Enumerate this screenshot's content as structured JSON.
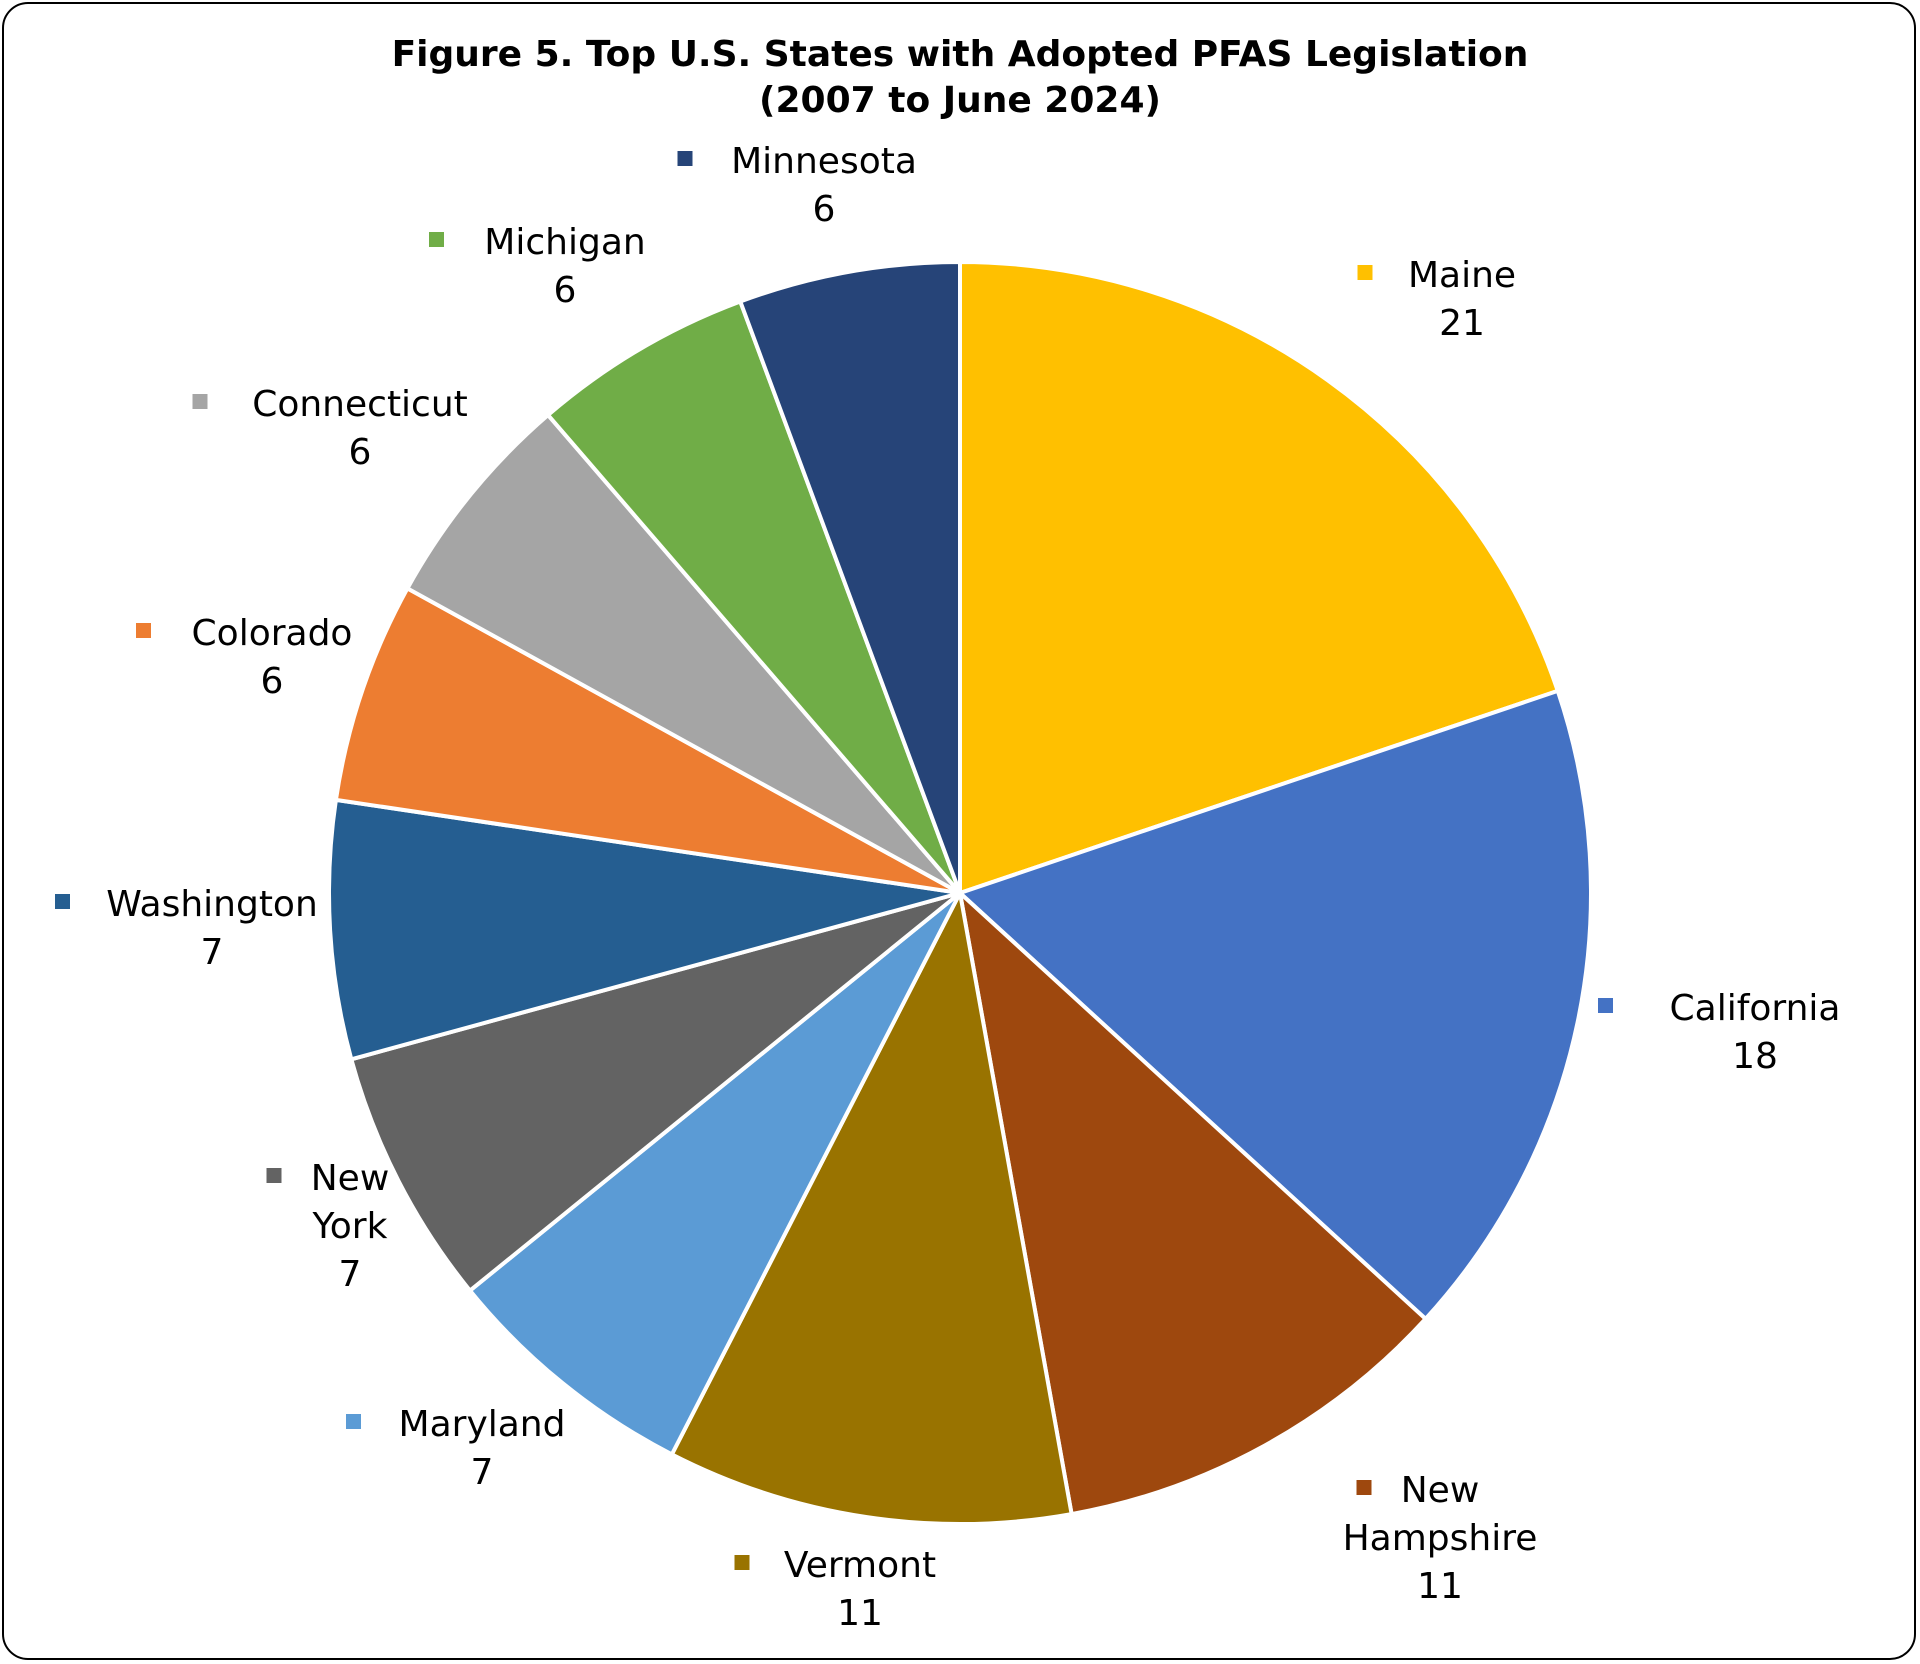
{
  "chart_data": {
    "type": "pie",
    "title_line1": "Figure 5. Top U.S. States with Adopted PFAS Legislation",
    "title_line2": "(2007 to June 2024)",
    "slices": [
      {
        "name": "Maine",
        "value": 21,
        "color": "#FFC000"
      },
      {
        "name": "California",
        "value": 18,
        "color": "#4472C4"
      },
      {
        "name": "New Hampshire",
        "value": 11,
        "color": "#9E480E"
      },
      {
        "name": "Vermont",
        "value": 11,
        "color": "#997300"
      },
      {
        "name": "Maryland",
        "value": 7,
        "color": "#5B9BD5"
      },
      {
        "name": "New York",
        "value": 7,
        "color": "#636363"
      },
      {
        "name": "Washington",
        "value": 7,
        "color": "#255E91"
      },
      {
        "name": "Colorado",
        "value": 6,
        "color": "#ED7D31"
      },
      {
        "name": "Connecticut",
        "value": 6,
        "color": "#A5A5A5"
      },
      {
        "name": "Michigan",
        "value": 6,
        "color": "#70AD47"
      },
      {
        "name": "Minnesota",
        "value": 6,
        "color": "#264478"
      }
    ],
    "start_angle": "12 o'clock",
    "direction": "clockwise"
  }
}
